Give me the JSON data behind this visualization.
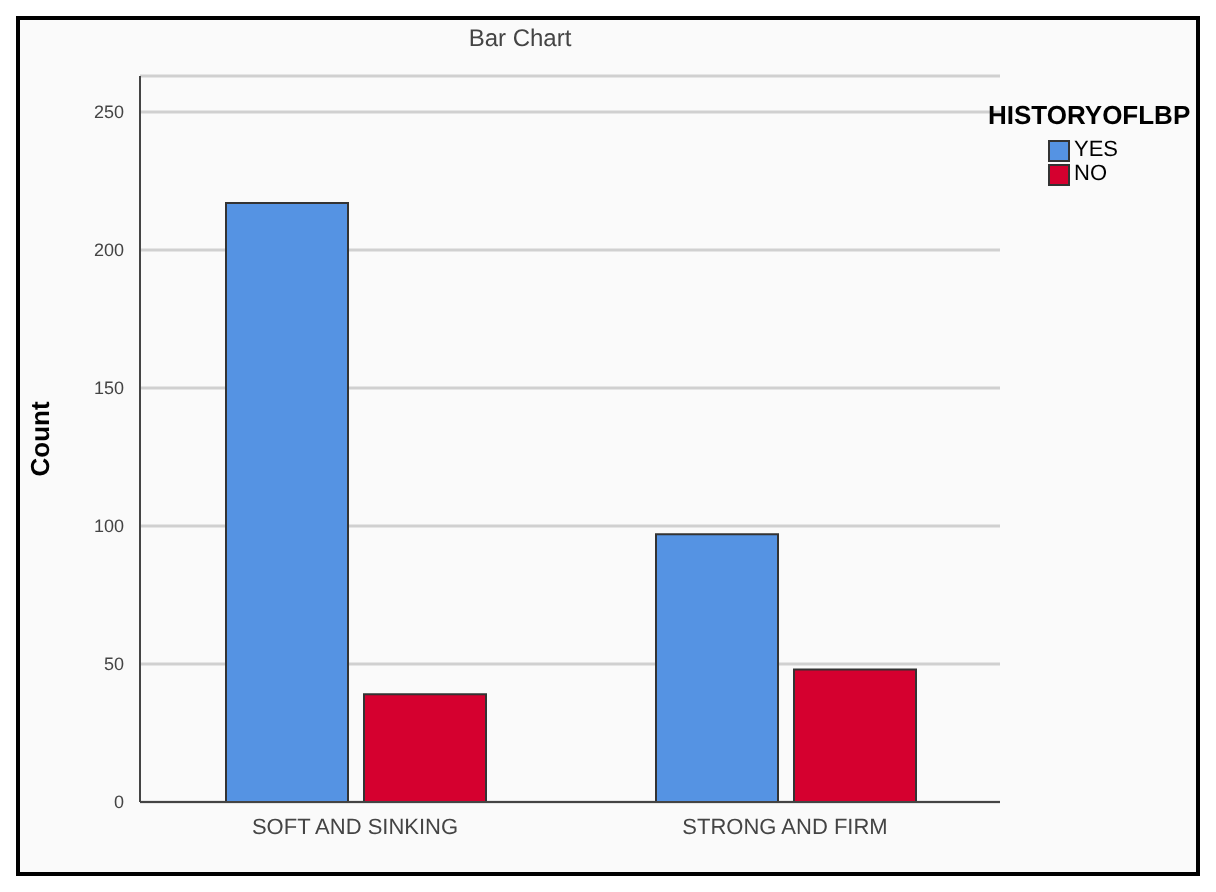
{
  "chart_data": {
    "type": "bar",
    "title": "Bar Chart",
    "ylabel": "Count",
    "categories": [
      "SOFT AND SINKING",
      "STRONG AND FIRM"
    ],
    "series": [
      {
        "name": "YES",
        "color": "#5593e3",
        "values": [
          217,
          97
        ]
      },
      {
        "name": "NO",
        "color": "#d5002f",
        "values": [
          39,
          48
        ]
      }
    ],
    "legend_title": "HISTORYOFLBP",
    "legend": "top right",
    "ylim": [
      0,
      263
    ],
    "yticks": [
      0,
      50,
      100,
      150,
      200,
      250
    ],
    "grid": "y"
  }
}
